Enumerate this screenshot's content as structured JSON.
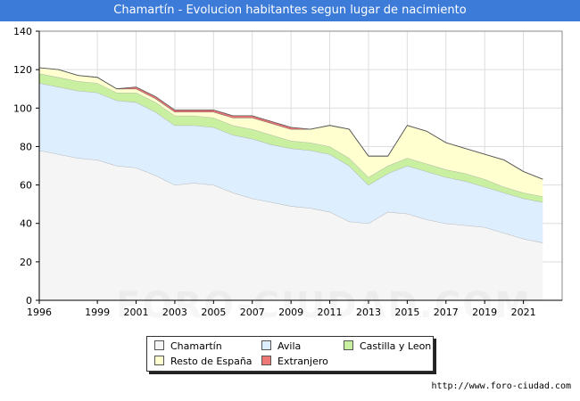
{
  "title": "Chamartín - Evolucion habitantes segun lugar de nacimiento",
  "source": "http://www.foro-ciudad.com",
  "watermark": "FORO-CIUDAD.COM",
  "chart_data": {
    "type": "area",
    "stacked": true,
    "title": "Chamartín - Evolucion habitantes segun lugar de nacimiento",
    "xlabel": "",
    "ylabel": "",
    "xlim": [
      1996,
      2023
    ],
    "ylim": [
      0,
      140
    ],
    "x_ticks": [
      1996,
      1999,
      2001,
      2003,
      2005,
      2007,
      2009,
      2011,
      2013,
      2015,
      2017,
      2019,
      2021
    ],
    "y_ticks": [
      0,
      20,
      40,
      60,
      80,
      100,
      120,
      140
    ],
    "grid": true,
    "legend_position": "bottom",
    "x": [
      1996,
      1997,
      1998,
      1999,
      2000,
      2001,
      2002,
      2003,
      2004,
      2005,
      2006,
      2007,
      2008,
      2009,
      2010,
      2011,
      2012,
      2013,
      2014,
      2015,
      2016,
      2017,
      2018,
      2019,
      2020,
      2021,
      2022
    ],
    "series": [
      {
        "name": "Chamartín",
        "color": "#f5f5f5",
        "values": [
          78,
          76,
          74,
          73,
          70,
          69,
          65,
          60,
          61,
          60,
          56,
          53,
          51,
          49,
          48,
          46,
          41,
          40,
          46,
          45,
          42,
          40,
          39,
          38,
          35,
          32,
          30
        ]
      },
      {
        "name": "Avila",
        "color": "#ddeeff",
        "values": [
          35,
          35,
          35,
          35,
          34,
          34,
          33,
          31,
          30,
          30,
          30,
          31,
          30,
          30,
          30,
          30,
          29,
          20,
          20,
          25,
          25,
          24,
          23,
          21,
          21,
          21,
          21
        ]
      },
      {
        "name": "Castilla y Leon",
        "color": "#c8f0a0",
        "values": [
          5,
          5,
          5,
          5,
          4,
          5,
          5,
          5,
          5,
          5,
          5,
          5,
          5,
          4,
          4,
          4,
          4,
          4,
          4,
          4,
          4,
          4,
          4,
          4,
          3,
          3,
          3
        ]
      },
      {
        "name": "Resto de España",
        "color": "#ffffd0",
        "values": [
          3,
          4,
          3,
          3,
          2,
          2,
          2,
          2,
          2,
          3,
          4,
          6,
          6,
          6,
          7,
          11,
          15,
          11,
          5,
          17,
          17,
          14,
          13,
          13,
          14,
          11,
          9
        ]
      },
      {
        "name": "Extranjero",
        "color": "#ee7777",
        "values": [
          0,
          0,
          0,
          0,
          0,
          1,
          1,
          1,
          1,
          1,
          1,
          1,
          1,
          1,
          0,
          0,
          0,
          0,
          0,
          0,
          0,
          0,
          0,
          0,
          0,
          0,
          0
        ]
      }
    ]
  }
}
